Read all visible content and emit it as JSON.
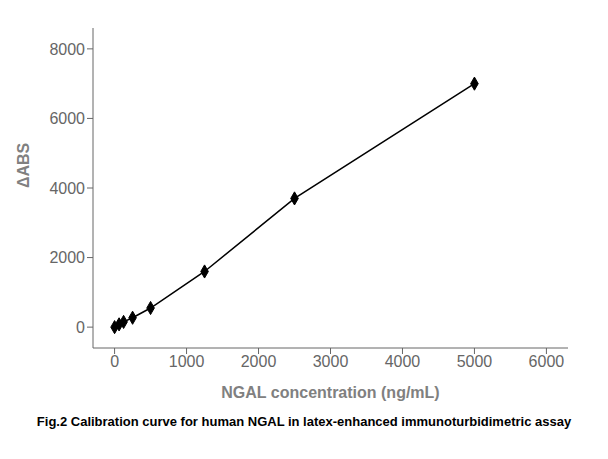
{
  "chart_data": {
    "type": "line",
    "title": "Fig.2 Calibration curve for human NGAL in latex-enhanced immunoturbidimetric assay",
    "x_label": "NGAL concentration (ng/mL)",
    "y_label": "ΔABS",
    "x": [
      0,
      62.5,
      125,
      250,
      500,
      1250,
      2500,
      5000
    ],
    "values": [
      0,
      80,
      150,
      270,
      550,
      1600,
      3700,
      7000
    ],
    "color": "#000000",
    "marker": "diamond",
    "xlim": [
      -300,
      6300
    ],
    "ylim": [
      -600,
      8600
    ],
    "xticks": [
      0,
      1000,
      2000,
      3000,
      4000,
      5000,
      6000
    ],
    "yticks": [
      0,
      2000,
      4000,
      6000,
      8000
    ],
    "grid": false
  }
}
